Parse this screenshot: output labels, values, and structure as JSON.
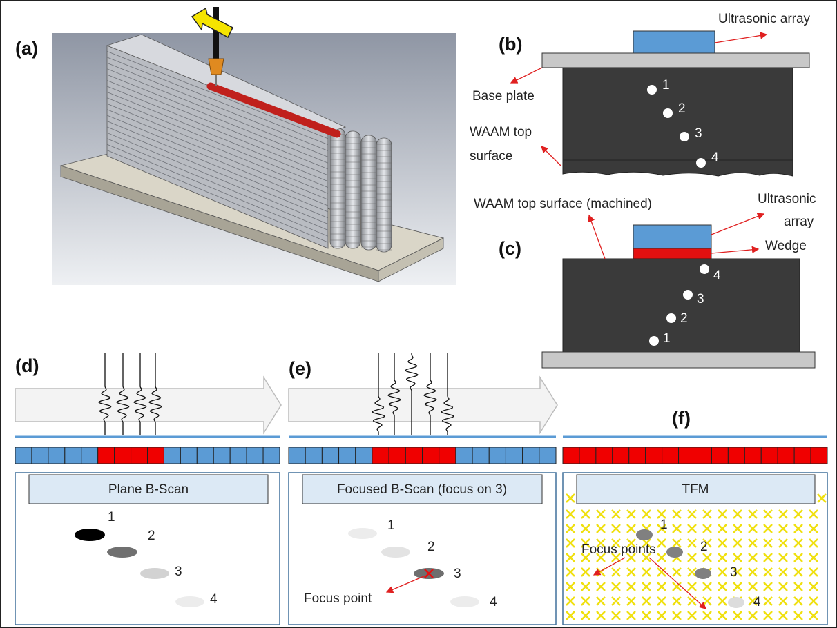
{
  "panel_labels": [
    "(a)",
    "(b)",
    "(c)",
    "(d)",
    "(e)",
    "(f)"
  ],
  "panel_b": {
    "ultrasonic_array": "Ultrasonic array",
    "base_plate": "Base plate",
    "waam_top_surface": [
      "WAAM top",
      "surface"
    ],
    "points": [
      "1",
      "2",
      "3",
      "4"
    ]
  },
  "panel_c": {
    "waam_top_surface": "WAAM top surface (machined)",
    "ultrasonic_array": [
      "Ultrasonic",
      "array"
    ],
    "wedge": "Wedge",
    "points": [
      "4",
      "3",
      "2",
      "1"
    ]
  },
  "panel_d": {
    "title": "Plane B-Scan",
    "points": [
      "1",
      "2",
      "3",
      "4"
    ]
  },
  "panel_e": {
    "title": "Focused B-Scan (focus on 3)",
    "points": [
      "1",
      "2",
      "3",
      "4"
    ],
    "annotation": "Focus point"
  },
  "panel_f": {
    "title": "TFM",
    "points": [
      "1",
      "2",
      "3",
      "4"
    ],
    "annotation": "Focus points"
  }
}
